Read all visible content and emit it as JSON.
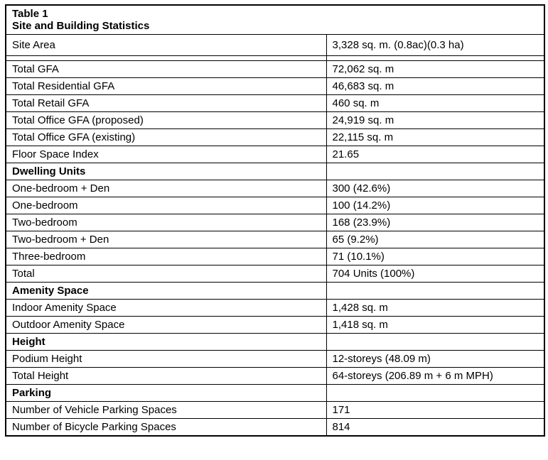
{
  "title": {
    "line1": "Table 1",
    "line2": "Site and Building Statistics"
  },
  "rows": [
    {
      "kind": "data",
      "first": true,
      "label": "Site Area",
      "value": "3,328 sq. m. (0.8ac)(0.3 ha)"
    },
    {
      "kind": "spacer",
      "label": "",
      "value": ""
    },
    {
      "kind": "data",
      "label": "Total GFA",
      "value": "72,062 sq. m"
    },
    {
      "kind": "data",
      "label": "Total Residential GFA",
      "value": "46,683 sq. m"
    },
    {
      "kind": "data",
      "label": "Total Retail GFA",
      "value": "460 sq. m"
    },
    {
      "kind": "data",
      "label": "Total Office GFA (proposed)",
      "value": "24,919 sq. m"
    },
    {
      "kind": "data",
      "label": "Total Office GFA (existing)",
      "value": "22,115 sq. m"
    },
    {
      "kind": "data",
      "label": "Floor Space Index",
      "value": "21.65"
    },
    {
      "kind": "section",
      "label": "Dwelling Units",
      "value": ""
    },
    {
      "kind": "data",
      "label": "One-bedroom + Den",
      "value": "300 (42.6%)"
    },
    {
      "kind": "data",
      "label": "One-bedroom",
      "value": "100 (14.2%)"
    },
    {
      "kind": "data",
      "label": "Two-bedroom",
      "value": "168 (23.9%)"
    },
    {
      "kind": "data",
      "label": "Two-bedroom + Den",
      "value": "65 (9.2%)"
    },
    {
      "kind": "data",
      "label": "Three-bedroom",
      "value": "71 (10.1%)"
    },
    {
      "kind": "data",
      "label": "Total",
      "value": "704 Units (100%)"
    },
    {
      "kind": "section",
      "label": "Amenity Space",
      "value": ""
    },
    {
      "kind": "data",
      "label": "Indoor Amenity Space",
      "value": "1,428 sq. m"
    },
    {
      "kind": "data",
      "label": "Outdoor Amenity Space",
      "value": "1,418 sq. m"
    },
    {
      "kind": "section",
      "label": "Height",
      "value": ""
    },
    {
      "kind": "data",
      "label": "Podium Height",
      "value": "12-storeys (48.09 m)"
    },
    {
      "kind": "data",
      "label": "Total Height",
      "value": "64-storeys (206.89 m + 6 m MPH)"
    },
    {
      "kind": "section",
      "label": "Parking",
      "value": ""
    },
    {
      "kind": "data",
      "label": "Number of Vehicle Parking Spaces",
      "value": "171"
    },
    {
      "kind": "data",
      "label": "Number of Bicycle Parking Spaces",
      "value": "814"
    }
  ]
}
